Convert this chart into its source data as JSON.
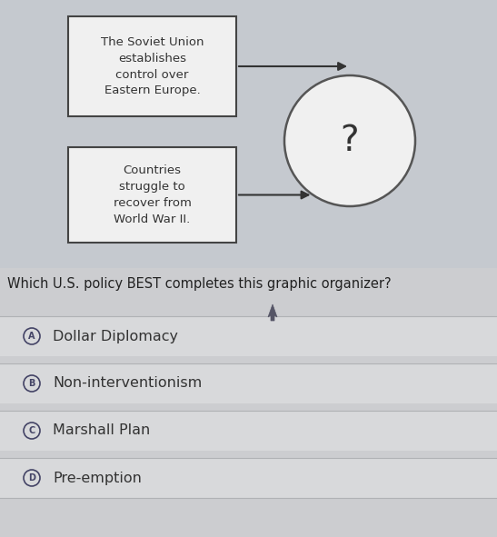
{
  "bg_top": "#c5c9cf",
  "bg_bottom": "#cccdd0",
  "box1_text": "The Soviet Union\nestablishes\ncontrol over\nEastern Europe.",
  "box2_text": "Countries\nstruggle to\nrecover from\nWorld War II.",
  "circle_text": "?",
  "question": "Which U.S. policy BEST completes this graphic organizer?",
  "options": [
    {
      "letter": "A",
      "text": "Dollar Diplomacy"
    },
    {
      "letter": "B",
      "text": "Non-interventionism"
    },
    {
      "letter": "C",
      "text": "Marshall Plan"
    },
    {
      "letter": "D",
      "text": "Pre-emption"
    }
  ],
  "box_facecolor": "#f0f0f0",
  "box_edgecolor": "#444444",
  "circle_facecolor": "#f0f0f0",
  "circle_edgecolor": "#555555",
  "text_color": "#333333",
  "question_color": "#222222",
  "option_bg": "#d8d9db",
  "option_letter_color": "#444466",
  "divider_color": "#b0b2b5",
  "arrow_color": "#333333"
}
